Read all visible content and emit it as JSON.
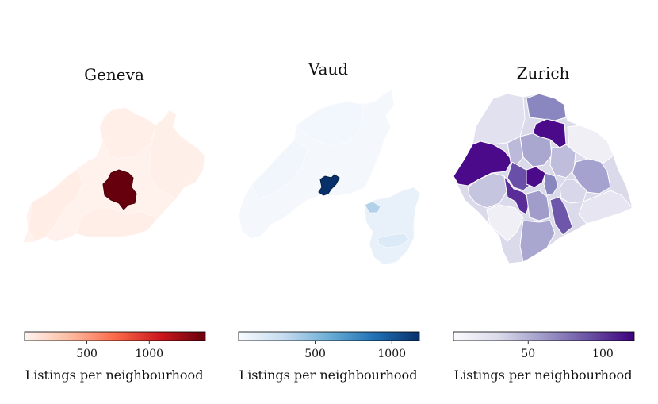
{
  "chart_data": [
    {
      "type": "choropleth",
      "title": "Geneva",
      "colormap": "Reds",
      "colorbar": {
        "label": "Listings per neighbourhood",
        "min": 0,
        "max": 1450,
        "ticks": [
          500,
          1000
        ]
      },
      "colors": {
        "low": "#fff5f0",
        "mid": "#fb6a4a",
        "high": "#67000d"
      }
    },
    {
      "type": "choropleth",
      "title": "Vaud",
      "colormap": "Blues",
      "colorbar": {
        "label": "Listings per neighbourhood",
        "min": 0,
        "max": 1180,
        "ticks": [
          500,
          1000
        ]
      },
      "colors": {
        "low": "#f7fbff",
        "mid": "#6baed6",
        "high": "#08306b"
      }
    },
    {
      "type": "choropleth",
      "title": "Zurich",
      "colormap": "Purples",
      "colorbar": {
        "label": "Listings per neighbourhood",
        "min": 0,
        "max": 121,
        "ticks": [
          50,
          100
        ]
      },
      "colors": {
        "low": "#fcfbfd",
        "mid": "#9e9ac8",
        "high": "#3f007d"
      }
    }
  ]
}
